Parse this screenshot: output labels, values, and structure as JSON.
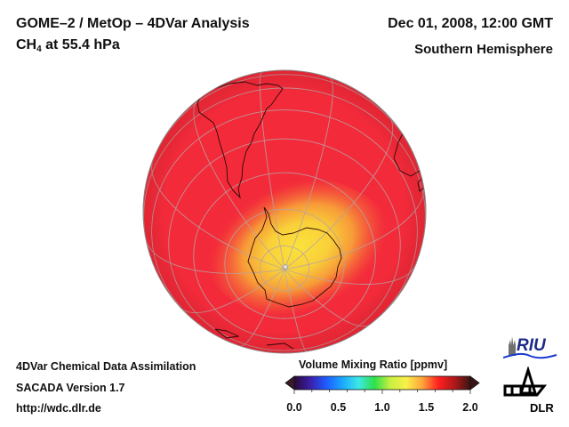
{
  "header": {
    "title_line1": "GOME–2 / MetOp – 4DVar Analysis",
    "species_main": "CH",
    "species_sub": "4",
    "species_rest": " at 55.4 hPa",
    "datetime": "Dec 01, 2008, 12:00 GMT",
    "region": "Southern Hemisphere"
  },
  "footer": {
    "line1": "4DVar Chemical Data Assimilation",
    "line2": "SACADA Version 1.7",
    "line3": "http://wdc.dlr.de"
  },
  "colorbar": {
    "title": "Volume Mixing Ratio [ppmv]",
    "min": 0.0,
    "max": 2.0,
    "ticks": [
      "0.0",
      "0.5",
      "1.0",
      "1.5",
      "2.0"
    ],
    "colors": [
      "#2a0a3a",
      "#3a1fa8",
      "#1f5cff",
      "#1aa8ff",
      "#3ce8e8",
      "#2ee04a",
      "#c8f040",
      "#f8f048",
      "#ffa43a",
      "#ff2020",
      "#b01818",
      "#3a1414"
    ]
  },
  "map": {
    "projection": "orthographic",
    "hemisphere": "south",
    "background_value_ppmv": 1.65,
    "max_value_ppmv": 1.35,
    "ocean_color": "#f32a3a",
    "high_color": "#f8d23a",
    "grid_color": "#b0a0a0"
  },
  "logos": {
    "riu": "RIU",
    "dlr": "DLR"
  }
}
